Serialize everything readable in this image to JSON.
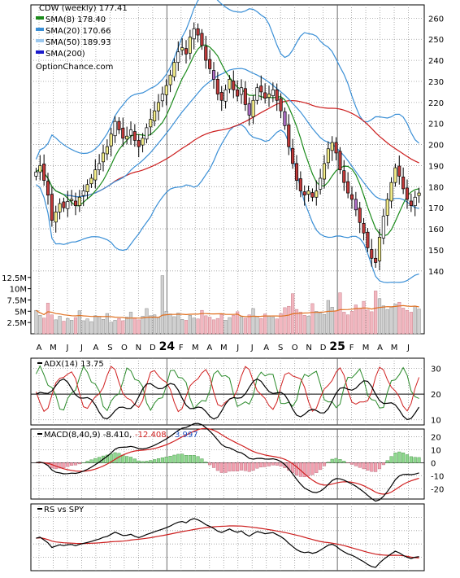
{
  "chart_data": [
    {
      "type": "candlestick",
      "panel": "price",
      "legend": [
        {
          "label": "CDW (weekly) 177.41",
          "color": "#ffffff",
          "swatch": false
        },
        {
          "label": "SMA(8) 178.40",
          "color": "#1a8a1a",
          "swatch": true
        },
        {
          "label": "SMA(20) 170.66",
          "color": "#3a8fd6",
          "swatch": true
        },
        {
          "label": "SMA(50) 189.93",
          "color": "#9cc8ee",
          "swatch": true
        },
        {
          "label": "SMA(200)",
          "color": "#1a1acc",
          "swatch": true
        }
      ],
      "watermark": "OptionChance.com",
      "ylim": [
        138,
        264
      ],
      "y_ticks": [
        140,
        150,
        160,
        170,
        180,
        190,
        200,
        210,
        220,
        230,
        240,
        250,
        260
      ],
      "x_labels": [
        "A",
        "M",
        "J",
        "J",
        "A",
        "S",
        "O",
        "N",
        "D",
        "24",
        "F",
        "M",
        "A",
        "M",
        "J",
        "J",
        "A",
        "S",
        "O",
        "N",
        "D",
        "25",
        "F",
        "M",
        "A",
        "M",
        "J"
      ],
      "x_label_bold": [
        "24",
        "25"
      ],
      "closes": [
        187,
        190,
        183,
        176,
        164,
        168,
        172,
        170,
        173,
        174,
        171,
        175,
        178,
        181,
        184,
        188,
        191,
        196,
        199,
        205,
        211,
        207,
        203,
        204,
        207,
        202,
        199,
        203,
        208,
        212,
        216,
        220,
        224,
        228,
        233,
        239,
        244,
        246,
        243,
        251,
        255,
        252,
        247,
        240,
        236,
        231,
        224,
        221,
        226,
        231,
        226,
        223,
        227,
        219,
        214,
        221,
        227,
        225,
        222,
        224,
        226,
        221,
        216,
        209,
        199,
        191,
        183,
        178,
        176,
        178,
        175,
        178,
        184,
        191,
        198,
        201,
        196,
        188,
        182,
        177,
        174,
        169,
        163,
        158,
        151,
        146,
        144,
        156,
        166,
        174,
        182,
        189,
        185,
        179,
        174,
        171,
        175,
        177
      ],
      "sma8_last": 178.4,
      "sma20_last": 170.66,
      "sma50_last": 189.93
    },
    {
      "type": "bar",
      "panel": "volume",
      "y_ticks_labels": [
        "2.5M",
        "5M",
        "7.5M",
        "10M",
        "12.5M"
      ],
      "y_ticks_values": [
        2.5,
        5,
        7.5,
        10,
        12.5
      ],
      "ylim": [
        0,
        13
      ],
      "values": [
        5.2,
        4.1,
        3.5,
        6.8,
        4.2,
        3.1,
        3.9,
        2.8,
        3.4,
        3.0,
        3.6,
        5.1,
        2.9,
        3.3,
        2.7,
        4.0,
        3.8,
        3.2,
        4.5,
        2.6,
        3.0,
        3.4,
        2.9,
        3.7,
        4.8,
        3.5,
        3.1,
        3.9,
        5.6,
        4.0,
        4.2,
        3.6,
        12.9,
        5.0,
        4.4,
        3.8,
        4.6,
        3.2,
        3.0,
        4.1,
        3.5,
        3.3,
        5.2,
        4.0,
        3.7,
        3.1,
        3.4,
        4.3,
        3.0,
        3.6,
        4.1,
        4.9,
        3.8,
        3.5,
        4.2,
        5.6,
        3.9,
        3.4,
        4.4,
        4.0,
        3.7,
        3.3,
        4.5,
        5.8,
        6.1,
        8.9,
        5.4,
        4.8,
        4.1,
        3.9,
        6.7,
        5.0,
        4.6,
        4.3,
        7.4,
        5.9,
        5.1,
        9.1,
        4.8,
        4.2,
        5.0,
        6.4,
        5.6,
        7.2,
        5.3,
        4.9,
        9.5,
        7.8,
        6.2,
        5.4,
        5.9,
        6.6,
        7.0,
        5.7,
        5.2,
        4.8,
        6.1,
        5.5
      ],
      "avg_last": 6.0
    },
    {
      "type": "line",
      "panel": "adx",
      "title": "ADX(14) 13.75",
      "ylim": [
        8,
        34
      ],
      "y_ticks": [
        10,
        20,
        30
      ],
      "ref_line": 20,
      "adx_last": 13.75
    },
    {
      "type": "line",
      "panel": "macd",
      "title": "MACD(8,40,9) -8.410,",
      "macd_label": "-12.408,",
      "signal_label": "3.997",
      "ylim": [
        -28,
        26
      ],
      "y_ticks": [
        -20,
        -10,
        0,
        10,
        20
      ],
      "tick_labels": [
        "-20",
        "-10",
        "0",
        "10",
        "20"
      ]
    },
    {
      "type": "line",
      "panel": "rs",
      "title": "RS vs SPY"
    }
  ],
  "colors": {
    "up_candle": "#f6f08a",
    "down_candle": "#c23a3a",
    "purple_candle": "#b070c8",
    "volume_up": "#f2b7c0",
    "volume_down": "#d0d0d0",
    "adx_pos": "#2a8a2a",
    "adx_neg": "#d02020",
    "macd_line": "#000000",
    "signal_line": "#d02020"
  }
}
